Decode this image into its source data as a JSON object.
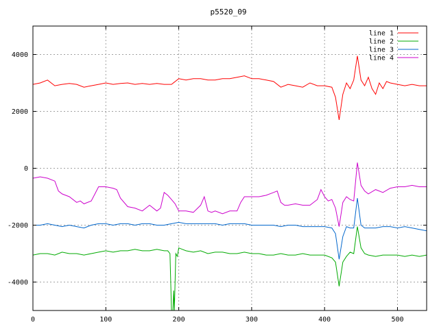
{
  "chart_data": {
    "type": "line",
    "title": "p5520_09",
    "xlabel": "",
    "ylabel": "",
    "xlim": [
      0,
      540
    ],
    "ylim": [
      -5000,
      5000
    ],
    "xticks": [
      0,
      100,
      200,
      300,
      400,
      500
    ],
    "yticks": [
      -4000,
      -2000,
      0,
      2000,
      4000
    ],
    "grid": true,
    "legend_position": "top-right",
    "series": [
      {
        "name": "line 1",
        "color": "#ff0000",
        "x": [
          0,
          10,
          20,
          30,
          40,
          50,
          60,
          70,
          80,
          90,
          100,
          110,
          120,
          130,
          140,
          150,
          160,
          170,
          180,
          190,
          200,
          210,
          220,
          230,
          240,
          250,
          260,
          270,
          280,
          290,
          300,
          310,
          320,
          330,
          340,
          350,
          360,
          370,
          380,
          390,
          400,
          410,
          415,
          420,
          425,
          430,
          435,
          440,
          445,
          450,
          455,
          460,
          465,
          470,
          475,
          480,
          485,
          490,
          500,
          510,
          520,
          530,
          540
        ],
        "y": [
          2950,
          3000,
          3100,
          2900,
          2950,
          2980,
          2950,
          2850,
          2900,
          2950,
          3000,
          2950,
          2980,
          3000,
          2950,
          2980,
          2950,
          2980,
          2950,
          2950,
          3150,
          3100,
          3150,
          3150,
          3100,
          3100,
          3150,
          3150,
          3200,
          3250,
          3150,
          3150,
          3100,
          3050,
          2850,
          2950,
          2900,
          2850,
          3000,
          2900,
          2900,
          2850,
          2500,
          1700,
          2600,
          3000,
          2800,
          3100,
          3950,
          3100,
          2900,
          3200,
          2800,
          2600,
          3000,
          2800,
          3050,
          3000,
          2950,
          2900,
          2950,
          2900,
          2900
        ]
      },
      {
        "name": "line 2",
        "color": "#00aa00",
        "x": [
          0,
          10,
          20,
          30,
          40,
          50,
          60,
          70,
          80,
          90,
          100,
          110,
          120,
          130,
          140,
          150,
          160,
          170,
          180,
          185,
          188,
          190,
          192,
          193,
          194,
          196,
          198,
          200,
          205,
          210,
          220,
          230,
          240,
          250,
          260,
          270,
          280,
          290,
          300,
          310,
          320,
          330,
          340,
          350,
          360,
          370,
          380,
          390,
          400,
          410,
          415,
          420,
          425,
          430,
          435,
          440,
          445,
          450,
          455,
          460,
          470,
          480,
          490,
          500,
          510,
          520,
          530,
          540
        ],
        "y": [
          -3050,
          -3000,
          -3000,
          -3050,
          -2950,
          -3000,
          -3000,
          -3050,
          -3000,
          -2950,
          -2900,
          -2950,
          -2900,
          -2900,
          -2850,
          -2900,
          -2900,
          -2850,
          -2900,
          -2900,
          -3000,
          -5000,
          -5000,
          -4300,
          -5000,
          -3000,
          -3100,
          -2800,
          -2850,
          -2900,
          -2950,
          -2900,
          -3000,
          -2950,
          -2950,
          -3000,
          -3000,
          -2950,
          -3000,
          -3000,
          -3050,
          -3050,
          -3000,
          -3050,
          -3050,
          -3000,
          -3050,
          -3050,
          -3050,
          -3150,
          -3300,
          -4150,
          -3300,
          -3100,
          -2950,
          -3000,
          -2050,
          -2800,
          -3000,
          -3050,
          -3100,
          -3050,
          -3050,
          -3050,
          -3100,
          -3050,
          -3100,
          -3050
        ]
      },
      {
        "name": "line 3",
        "color": "#0066cc",
        "x": [
          0,
          10,
          20,
          30,
          40,
          50,
          60,
          70,
          80,
          90,
          100,
          110,
          120,
          130,
          140,
          150,
          160,
          170,
          180,
          190,
          200,
          210,
          220,
          230,
          240,
          250,
          260,
          270,
          280,
          290,
          300,
          310,
          320,
          330,
          340,
          350,
          360,
          370,
          380,
          390,
          400,
          410,
          415,
          420,
          425,
          430,
          435,
          440,
          445,
          450,
          455,
          460,
          470,
          480,
          490,
          500,
          510,
          520,
          530,
          540
        ],
        "y": [
          -2000,
          -2000,
          -1950,
          -2000,
          -2050,
          -2000,
          -2050,
          -2100,
          -2000,
          -1950,
          -1950,
          -2000,
          -1950,
          -1950,
          -2000,
          -1950,
          -1950,
          -2000,
          -2000,
          -1950,
          -1900,
          -1950,
          -1950,
          -1950,
          -1950,
          -1950,
          -2000,
          -1950,
          -1950,
          -1950,
          -2000,
          -2000,
          -2000,
          -2000,
          -2050,
          -2000,
          -2000,
          -2050,
          -2050,
          -2050,
          -2050,
          -2100,
          -2300,
          -3200,
          -2400,
          -2050,
          -2100,
          -2100,
          -1050,
          -2000,
          -2100,
          -2100,
          -2100,
          -2050,
          -2050,
          -2100,
          -2050,
          -2100,
          -2150,
          -2200
        ]
      },
      {
        "name": "line 4",
        "color": "#cc00cc",
        "x": [
          0,
          10,
          20,
          30,
          35,
          40,
          50,
          60,
          65,
          70,
          80,
          85,
          90,
          100,
          110,
          115,
          120,
          130,
          140,
          150,
          160,
          170,
          175,
          180,
          185,
          190,
          195,
          200,
          210,
          220,
          230,
          235,
          240,
          245,
          250,
          260,
          270,
          280,
          285,
          290,
          300,
          310,
          320,
          330,
          335,
          340,
          345,
          350,
          360,
          370,
          380,
          390,
          395,
          400,
          405,
          410,
          415,
          420,
          425,
          430,
          435,
          440,
          445,
          450,
          455,
          460,
          470,
          480,
          490,
          500,
          510,
          520,
          530,
          540
        ],
        "y": [
          -350,
          -300,
          -350,
          -450,
          -800,
          -900,
          -1000,
          -1200,
          -1150,
          -1250,
          -1150,
          -900,
          -650,
          -650,
          -700,
          -750,
          -1050,
          -1350,
          -1400,
          -1500,
          -1300,
          -1500,
          -1400,
          -850,
          -950,
          -1100,
          -1250,
          -1500,
          -1500,
          -1550,
          -1300,
          -1000,
          -1500,
          -1550,
          -1500,
          -1600,
          -1500,
          -1500,
          -1200,
          -1000,
          -1000,
          -1000,
          -950,
          -850,
          -800,
          -1200,
          -1300,
          -1300,
          -1250,
          -1300,
          -1300,
          -1100,
          -750,
          -1000,
          -1150,
          -1100,
          -1400,
          -2050,
          -1200,
          -1000,
          -1100,
          -1150,
          200,
          -600,
          -800,
          -900,
          -750,
          -850,
          -700,
          -650,
          -650,
          -600,
          -650,
          -650
        ]
      }
    ]
  }
}
